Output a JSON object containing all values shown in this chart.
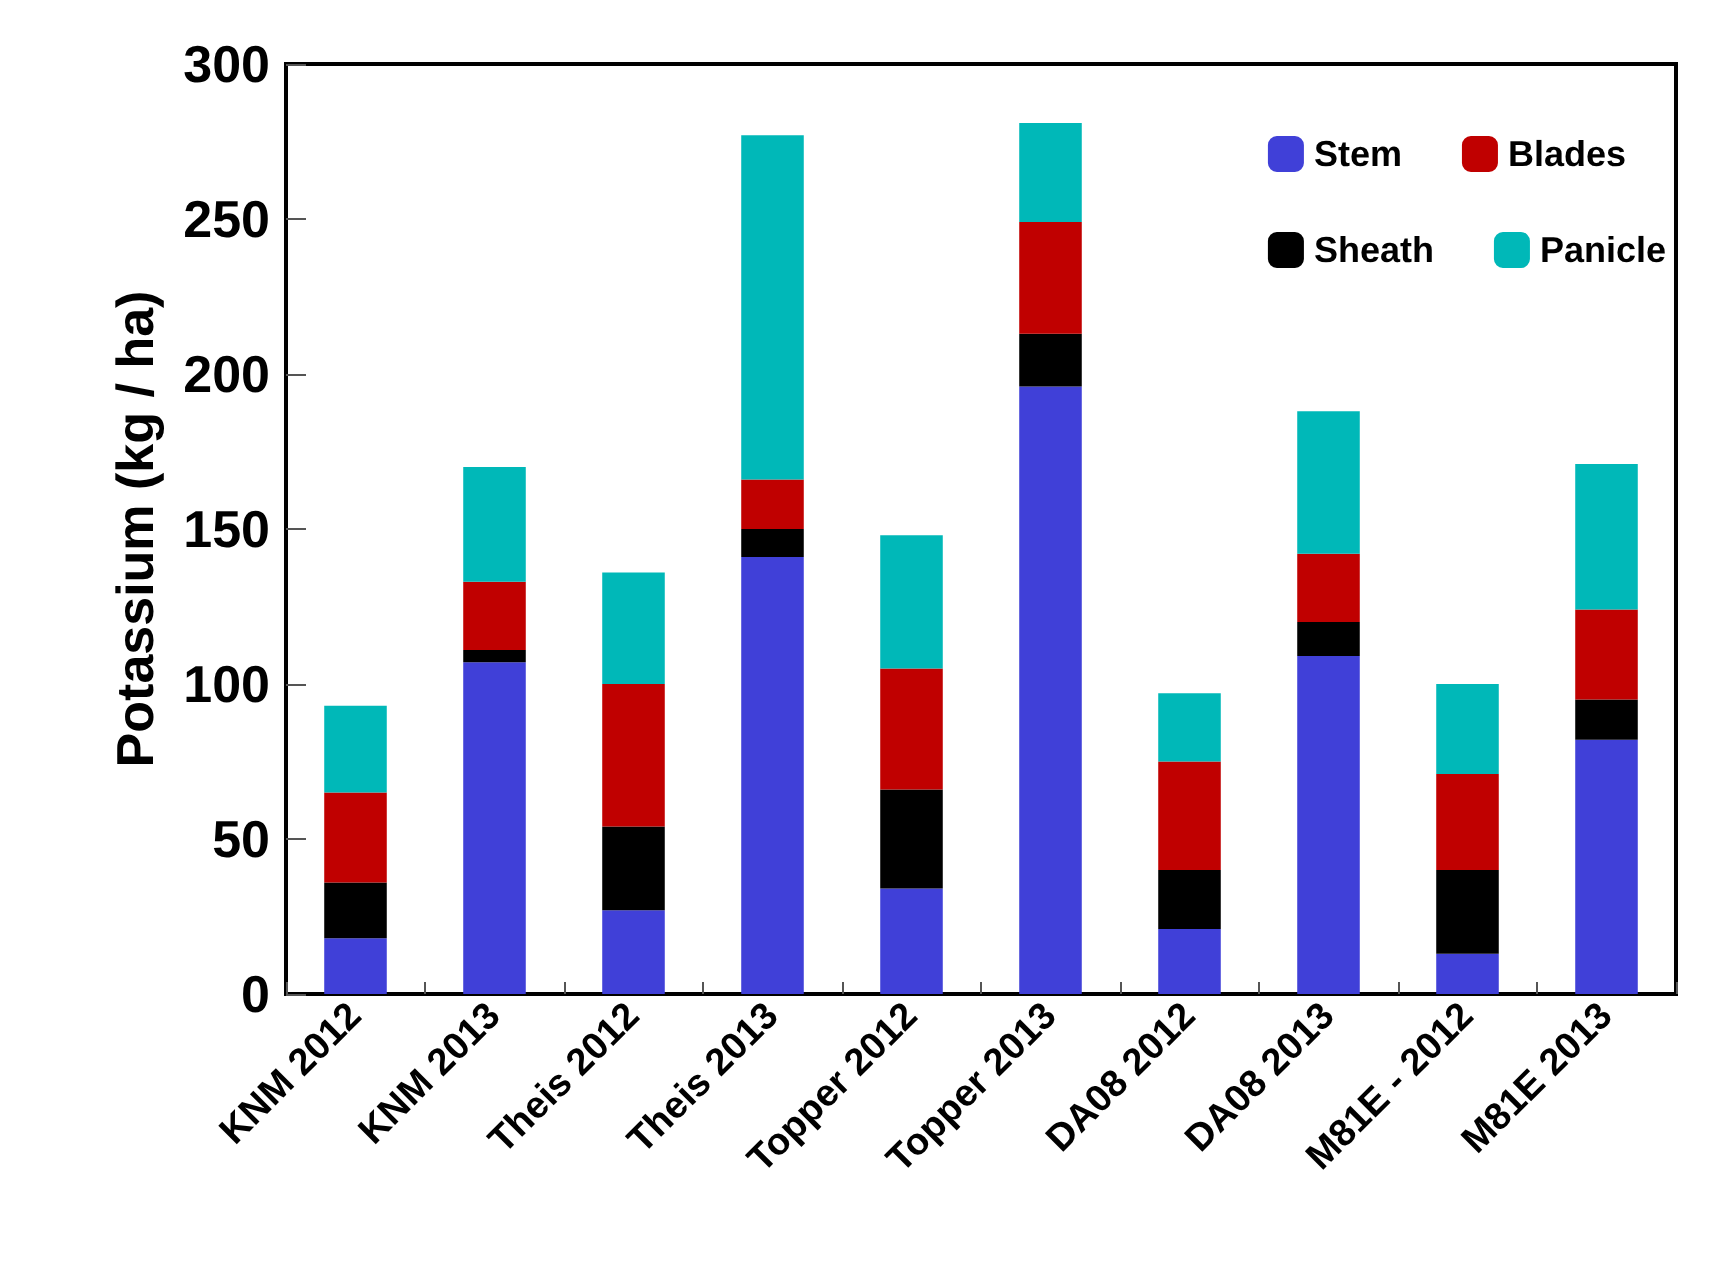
{
  "chart_data": {
    "type": "bar",
    "ylabel": "Potassium (kg / ha)",
    "categories": [
      "KNM 2012",
      "KNM 2013",
      "Theis 2012",
      "Theis 2013",
      "Topper 2012",
      "Topper 2013",
      "DA08 2012",
      "DA08 2013",
      "M81E - 2012",
      "M81E 2013"
    ],
    "series": [
      {
        "name": "Stem",
        "color": "#4040d8",
        "values": [
          18,
          107,
          27,
          141,
          34,
          196,
          21,
          109,
          13,
          82
        ]
      },
      {
        "name": "Sheath",
        "color": "#000000",
        "values": [
          18,
          4,
          27,
          9,
          32,
          17,
          19,
          11,
          27,
          13
        ]
      },
      {
        "name": "Blades",
        "color": "#c00000",
        "values": [
          29,
          22,
          46,
          16,
          39,
          36,
          35,
          22,
          31,
          29
        ]
      },
      {
        "name": "Panicle",
        "color": "#00b8b8",
        "values": [
          28,
          37,
          36,
          111,
          43,
          32,
          22,
          46,
          29,
          47
        ]
      }
    ],
    "stacked": true,
    "ylim": [
      0,
      300
    ],
    "yticks": [
      0,
      50,
      100,
      150,
      200,
      250,
      300
    ],
    "grid": false,
    "legend": "top right"
  }
}
